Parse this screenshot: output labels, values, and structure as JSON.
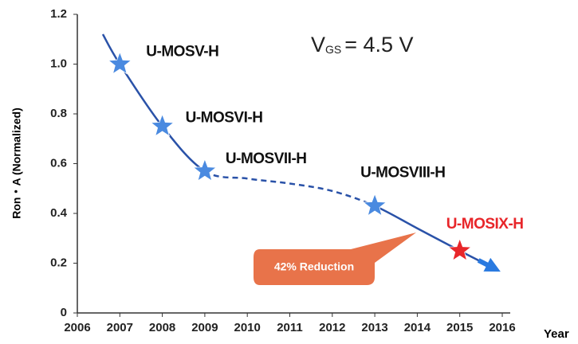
{
  "chart_data": {
    "type": "line",
    "y_label": "Ron・A (Normalized)",
    "x_label": "Year",
    "vgs_label": {
      "symbol": "V",
      "subscript": "GS",
      "rest": "= 4.5 V"
    },
    "callout": "42% Reduction",
    "x": [
      2007,
      2008,
      2009,
      2013,
      2015
    ],
    "values": [
      1.0,
      0.75,
      0.57,
      0.43,
      0.25
    ],
    "point_labels": [
      "U-MOSV-H",
      "U-MOSVI-H",
      "U-MOSVII-H",
      "U-MOSVIII-H",
      "U-MOSIX-H"
    ],
    "point_colors": [
      "#4a8ae0",
      "#4a8ae0",
      "#4a8ae0",
      "#4a8ae0",
      "#e8262a"
    ],
    "label_colors": [
      "#111111",
      "#111111",
      "#111111",
      "#111111",
      "#e8262a"
    ],
    "curve": {
      "x": [
        2006.6,
        2007,
        2008,
        2009,
        2010,
        2011,
        2012,
        2013,
        2014,
        2015,
        2015.8
      ],
      "values": [
        1.12,
        1.0,
        0.75,
        0.57,
        0.54,
        0.52,
        0.49,
        0.43,
        0.34,
        0.25,
        0.18
      ],
      "color": "#2a52a8",
      "dashed_between": [
        2009,
        2013
      ]
    },
    "xlim": [
      2006,
      2016
    ],
    "xticks": [
      2006,
      2007,
      2008,
      2009,
      2010,
      2011,
      2012,
      2013,
      2014,
      2015,
      2016
    ],
    "ylim": [
      0,
      1.2
    ],
    "yticks": [
      0,
      0.2,
      0.4,
      0.6,
      0.8,
      {
        "value": 1,
        "label": "1.0"
      },
      1.2
    ]
  }
}
